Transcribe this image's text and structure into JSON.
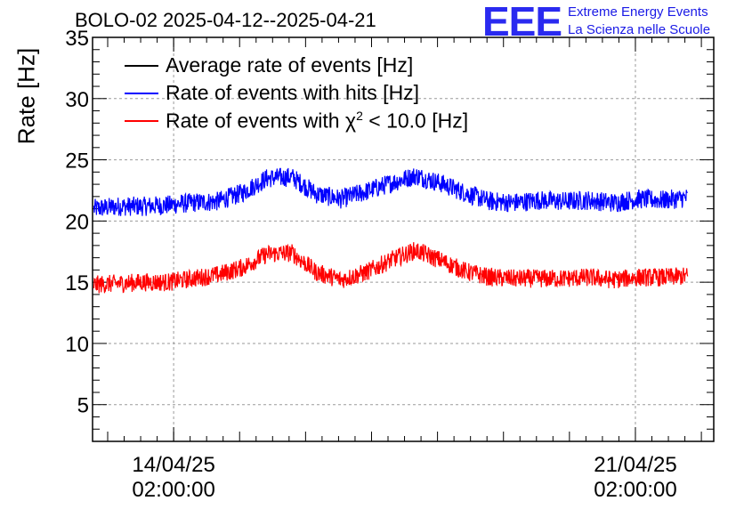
{
  "header": {
    "title": "BOLO-02 2025-04-12--2025-04-21",
    "logo_letters": "EEE",
    "logo_line1": "Extreme Energy Events",
    "logo_line2": "La Scienza nelle Scuole"
  },
  "legend": {
    "items": [
      {
        "label": "Average rate of events [Hz]",
        "color": "#000000"
      },
      {
        "label": "Rate of events with hits [Hz]",
        "color": "#0000ff"
      },
      {
        "label": "Rate of events with χ",
        "sup": "2",
        "suffix": " < 10.0 [Hz]",
        "color": "#ff0000"
      }
    ]
  },
  "chart_data": {
    "type": "line",
    "title": "BOLO-02 2025-04-12--2025-04-21",
    "ylabel": "Rate [Hz]",
    "xlabel": "",
    "ylim": [
      2,
      35
    ],
    "yticks": [
      5,
      10,
      15,
      20,
      25,
      30,
      35
    ],
    "xlim": [
      "2025-04-12T20:30",
      "2025-04-22T06:30"
    ],
    "xticks": [
      {
        "date": "2025-04-14T02:00",
        "label_line1": "14/04/25",
        "label_line2": "02:00:00"
      },
      {
        "date": "2025-04-21T02:00",
        "label_line1": "21/04/25",
        "label_line2": "02:00:00"
      }
    ],
    "grid": true,
    "legend_position": "top-left",
    "series": [
      {
        "name": "Rate of events with hits [Hz]",
        "color": "#0000ff",
        "x": [
          "2025-04-12T21:00",
          "2025-04-13T06:00",
          "2025-04-13T15:00",
          "2025-04-14T00:00",
          "2025-04-14T09:00",
          "2025-04-14T18:00",
          "2025-04-15T03:00",
          "2025-04-15T12:00",
          "2025-04-15T21:00",
          "2025-04-16T06:00",
          "2025-04-16T15:00",
          "2025-04-17T00:00",
          "2025-04-17T09:00",
          "2025-04-17T18:00",
          "2025-04-18T03:00",
          "2025-04-18T12:00",
          "2025-04-18T21:00",
          "2025-04-19T06:00",
          "2025-04-19T15:00",
          "2025-04-20T00:00",
          "2025-04-20T09:00",
          "2025-04-20T18:00",
          "2025-04-21T03:00",
          "2025-04-21T12:00",
          "2025-04-21T21:00"
        ],
        "values": [
          21.0,
          21.2,
          21.2,
          21.3,
          21.5,
          21.6,
          22.3,
          23.5,
          23.6,
          22.2,
          21.8,
          22.4,
          23.1,
          23.7,
          23.1,
          22.3,
          21.6,
          21.5,
          21.7,
          21.6,
          21.7,
          21.5,
          21.8,
          21.7,
          21.9
        ],
        "noise": 0.8
      },
      {
        "name": "Rate of events with χ2 < 10.0 [Hz]",
        "color": "#ff0000",
        "x": [
          "2025-04-12T21:00",
          "2025-04-13T06:00",
          "2025-04-13T15:00",
          "2025-04-14T00:00",
          "2025-04-14T09:00",
          "2025-04-14T18:00",
          "2025-04-15T03:00",
          "2025-04-15T12:00",
          "2025-04-15T21:00",
          "2025-04-16T06:00",
          "2025-04-16T15:00",
          "2025-04-17T00:00",
          "2025-04-17T09:00",
          "2025-04-17T18:00",
          "2025-04-18T03:00",
          "2025-04-18T12:00",
          "2025-04-18T21:00",
          "2025-04-19T06:00",
          "2025-04-19T15:00",
          "2025-04-20T00:00",
          "2025-04-20T09:00",
          "2025-04-20T18:00",
          "2025-04-21T03:00",
          "2025-04-21T12:00",
          "2025-04-21T21:00"
        ],
        "values": [
          14.8,
          14.9,
          15.0,
          15.0,
          15.3,
          15.6,
          16.2,
          17.3,
          17.4,
          15.8,
          15.2,
          15.8,
          16.8,
          17.6,
          16.8,
          15.9,
          15.4,
          15.3,
          15.3,
          15.3,
          15.4,
          15.2,
          15.4,
          15.4,
          15.5
        ],
        "noise": 0.75
      }
    ]
  }
}
